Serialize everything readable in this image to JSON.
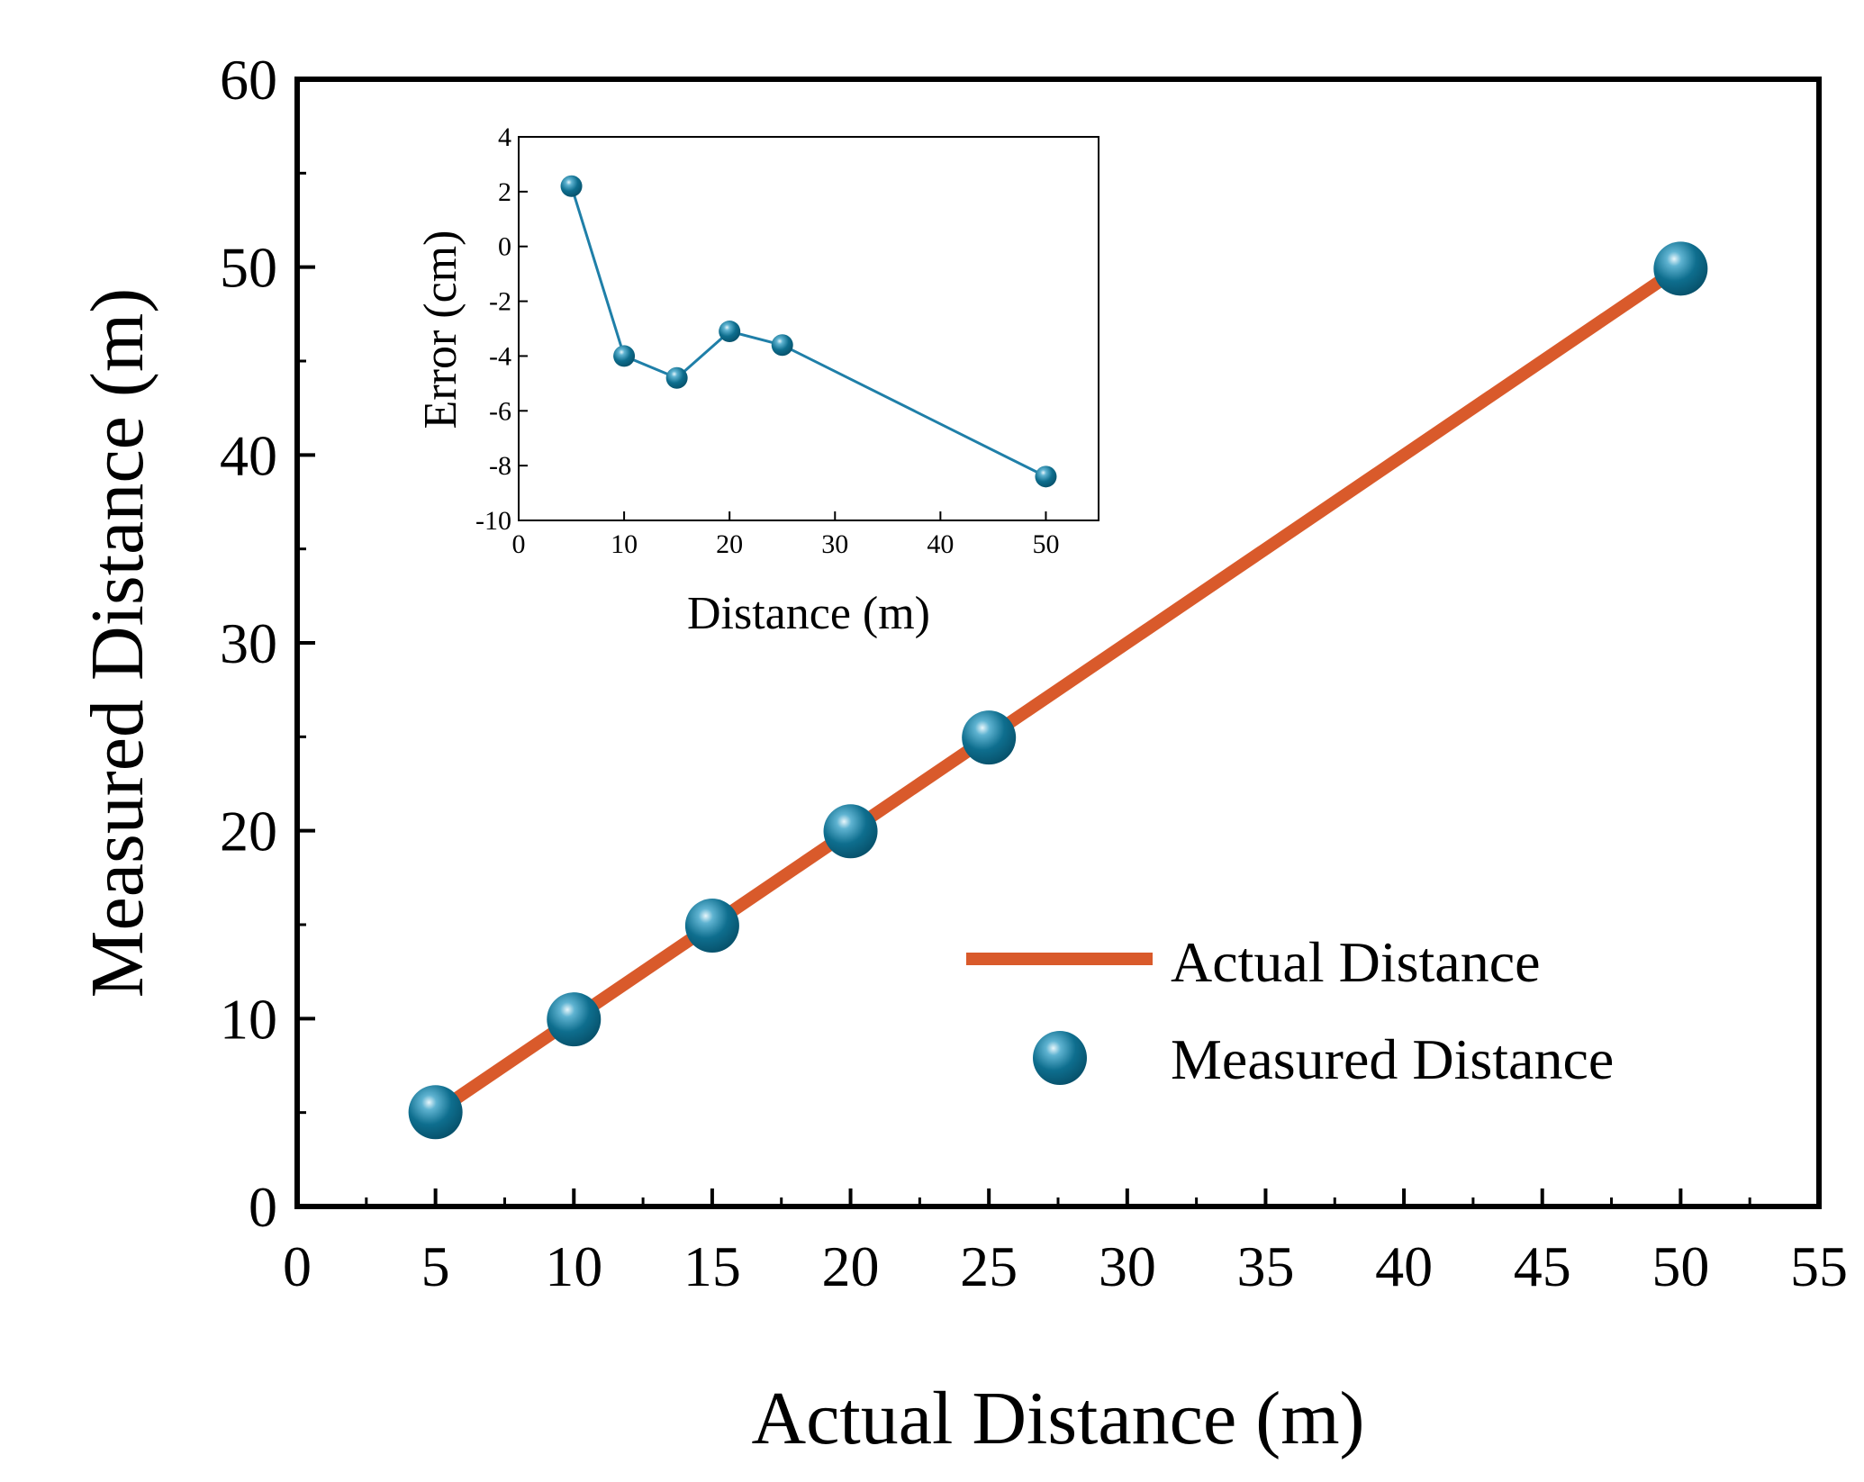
{
  "colors": {
    "actual_line": "#d95a2b",
    "marker": "#0e6e8e",
    "marker_highlight": "#e8f6fb",
    "inset_line": "#1f7fa8",
    "axis": "#000000"
  },
  "chart_data": [
    {
      "id": "main",
      "type": "line",
      "title": "",
      "xlabel": "Actual Distance (m)",
      "ylabel": "Measured Distance (m)",
      "xlim": [
        0,
        55
      ],
      "ylim": [
        0,
        60
      ],
      "xticks": [
        0,
        5,
        10,
        15,
        20,
        25,
        30,
        35,
        40,
        45,
        50,
        55
      ],
      "xtick_labels": [
        "0",
        "5",
        "10",
        "15",
        "20",
        "25",
        "30",
        "35",
        "40",
        "45",
        "50",
        "55"
      ],
      "yticks": [
        0,
        10,
        20,
        30,
        40,
        50,
        60
      ],
      "ytick_labels": [
        "0",
        "10",
        "20",
        "30",
        "40",
        "50",
        "60"
      ],
      "grid": false,
      "legend_position": "bottom-right",
      "series": [
        {
          "name": "Actual Distance",
          "style": "line",
          "x": [
            5,
            50
          ],
          "y": [
            5,
            50
          ]
        },
        {
          "name": "Measured Distance",
          "style": "scatter",
          "x": [
            5,
            10,
            15,
            20,
            25,
            50
          ],
          "y": [
            5.02,
            9.96,
            14.95,
            19.97,
            24.96,
            49.92
          ]
        }
      ]
    },
    {
      "id": "inset",
      "type": "line",
      "title": "",
      "xlabel": "Distance (m)",
      "ylabel": "Error (cm)",
      "xlim": [
        0,
        55
      ],
      "ylim": [
        -10,
        4
      ],
      "xticks": [
        0,
        10,
        20,
        30,
        40,
        50
      ],
      "xtick_labels": [
        "0",
        "10",
        "20",
        "30",
        "40",
        "50"
      ],
      "yticks": [
        -10,
        -8,
        -6,
        -4,
        -2,
        0,
        2,
        4
      ],
      "ytick_labels": [
        "-10",
        "-8",
        "-6",
        "-4",
        "-2",
        "0",
        "2",
        "4"
      ],
      "grid": false,
      "series": [
        {
          "name": "Error",
          "style": "line+markers",
          "x": [
            5,
            10,
            15,
            20,
            25,
            50
          ],
          "y": [
            2.2,
            -4.0,
            -4.8,
            -3.1,
            -3.6,
            -8.4
          ]
        }
      ]
    }
  ]
}
